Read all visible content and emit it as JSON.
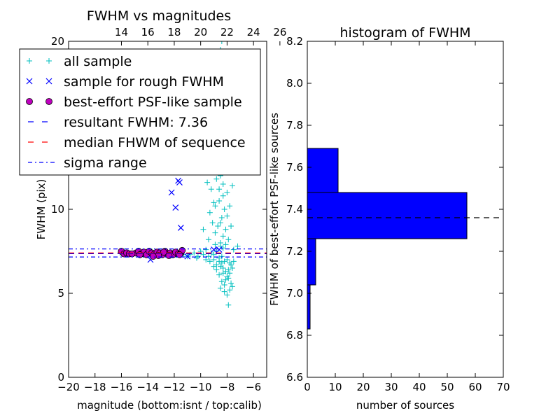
{
  "chart_data": [
    {
      "type": "scatter",
      "title": "FWHM vs magnitudes",
      "xlabel": "magnitude (bottom:isnt / top:calib)",
      "ylabel": "FWHM (pix)",
      "xlim": [
        -20,
        -5
      ],
      "ylim": [
        0,
        20
      ],
      "x_ticks": [
        -20,
        -18,
        -16,
        -14,
        -12,
        -10,
        -8,
        -6
      ],
      "x_tick_labels": [
        "−20",
        "−18",
        "−16",
        "−14",
        "−12",
        "−10",
        "−8",
        "−6"
      ],
      "y_ticks": [
        0,
        5,
        10,
        20
      ],
      "y_tick_labels": [
        "0",
        "5",
        "10",
        "20"
      ],
      "top_axis": {
        "offset": 30,
        "ticks": [
          14,
          16,
          18,
          20,
          22,
          24,
          26
        ],
        "tick_labels": [
          "14",
          "16",
          "18",
          "20",
          "22",
          "24",
          "26"
        ]
      },
      "grid": false,
      "legend_position": "upper-left",
      "legend": [
        {
          "label": "all sample",
          "marker": "plus",
          "color": "#00bfbf"
        },
        {
          "label": "sample for rough FWHM",
          "marker": "x",
          "color": "#0000ff"
        },
        {
          "label": "best-effort PSF-like sample",
          "marker": "circle",
          "color": "#bf00bf"
        },
        {
          "label": "resultant FWHM: 7.36",
          "marker": "dashed-line",
          "color": "#0000ff"
        },
        {
          "label": "median FHWM of sequence",
          "marker": "dashed-line",
          "color": "#ff0000"
        },
        {
          "label": "sigma range",
          "marker": "dashdot-line",
          "color": "#0000ff"
        }
      ],
      "series": [
        {
          "marker": "plus",
          "color": "#00bfbf",
          "points": [
            [
              -10.8,
              7.3
            ],
            [
              -10.5,
              7.4
            ],
            [
              -10.2,
              7.2
            ],
            [
              -10.0,
              7.5
            ],
            [
              -9.8,
              7.3
            ],
            [
              -9.6,
              7.6
            ],
            [
              -9.4,
              7.2
            ],
            [
              -9.2,
              7.4
            ],
            [
              -9.0,
              7.3
            ],
            [
              -8.8,
              7.5
            ],
            [
              -8.6,
              7.1
            ],
            [
              -8.4,
              7.2
            ],
            [
              -8.2,
              6.9
            ],
            [
              -8.0,
              7.0
            ],
            [
              -7.8,
              6.8
            ],
            [
              -7.5,
              7.6
            ],
            [
              -7.2,
              7.8
            ],
            [
              -7.9,
              4.3
            ],
            [
              -8.1,
              5.8
            ],
            [
              -8.3,
              6.2
            ],
            [
              -8.5,
              6.6
            ],
            [
              -7.9,
              6.4
            ],
            [
              -7.7,
              5.6
            ],
            [
              -7.6,
              5.4
            ],
            [
              -8.0,
              6.0
            ],
            [
              -8.2,
              5.5
            ],
            [
              -8.4,
              6.8
            ],
            [
              -7.8,
              6.2
            ],
            [
              -8.6,
              6.9
            ],
            [
              -8.8,
              6.7
            ],
            [
              -9.0,
              7.0
            ],
            [
              -9.3,
              6.9
            ],
            [
              -9.6,
              7.0
            ],
            [
              -10.3,
              7.1
            ],
            [
              -11.0,
              7.2
            ],
            [
              -11.3,
              7.3
            ],
            [
              -11.6,
              7.4
            ],
            [
              -11.9,
              7.3
            ],
            [
              -12.2,
              7.4
            ],
            [
              -12.5,
              7.3
            ],
            [
              -12.8,
              7.5
            ],
            [
              -13.1,
              7.4
            ],
            [
              -13.4,
              7.3
            ],
            [
              -13.7,
              7.5
            ],
            [
              -14.0,
              7.4
            ],
            [
              -14.3,
              7.3
            ],
            [
              -14.6,
              7.4
            ],
            [
              -14.9,
              7.4
            ],
            [
              -15.2,
              7.3
            ],
            [
              -15.5,
              7.4
            ],
            [
              -15.8,
              7.5
            ],
            [
              -16.1,
              7.4
            ],
            [
              -8.5,
              8.0
            ],
            [
              -8.3,
              8.4
            ],
            [
              -8.1,
              8.8
            ],
            [
              -8.7,
              9.0
            ],
            [
              -8.4,
              9.5
            ],
            [
              -8.2,
              10.0
            ],
            [
              -8.6,
              10.5
            ],
            [
              -8.0,
              11.0
            ],
            [
              -8.3,
              11.5
            ],
            [
              -8.5,
              12.0
            ],
            [
              -8.1,
              12.5
            ],
            [
              -8.7,
              13.0
            ],
            [
              -8.4,
              13.5
            ],
            [
              -8.2,
              14.0
            ],
            [
              -8.6,
              14.5
            ],
            [
              -8.3,
              15.0
            ],
            [
              -8.5,
              15.5
            ],
            [
              -8.1,
              16.0
            ],
            [
              -8.7,
              16.5
            ],
            [
              -8.4,
              17.0
            ],
            [
              -8.2,
              17.5
            ],
            [
              -8.6,
              18.0
            ],
            [
              -8.0,
              18.5
            ],
            [
              -8.3,
              19.0
            ],
            [
              -8.5,
              19.5
            ],
            [
              -8.4,
              20.0
            ],
            [
              -8.9,
              8.6
            ],
            [
              -9.1,
              9.2
            ],
            [
              -9.3,
              9.8
            ],
            [
              -9.0,
              10.4
            ],
            [
              -9.2,
              11.2
            ],
            [
              -8.8,
              11.8
            ],
            [
              -9.4,
              12.4
            ],
            [
              -9.1,
              13.2
            ],
            [
              -8.9,
              13.8
            ],
            [
              -9.3,
              14.6
            ],
            [
              -9.0,
              15.4
            ],
            [
              -8.8,
              16.2
            ],
            [
              -9.2,
              17.0
            ],
            [
              -8.9,
              17.8
            ],
            [
              -9.5,
              11.6
            ],
            [
              -9.7,
              12.8
            ],
            [
              -9.6,
              14.2
            ],
            [
              -9.9,
              13.0
            ],
            [
              -10.1,
              14.0
            ],
            [
              -10.4,
              13.4
            ],
            [
              -7.9,
              8.2
            ],
            [
              -7.7,
              9.0
            ],
            [
              -7.8,
              10.2
            ],
            [
              -7.6,
              11.4
            ],
            [
              -7.9,
              12.6
            ],
            [
              -7.7,
              14.8
            ],
            [
              -7.8,
              16.6
            ],
            [
              -8.0,
              9.6
            ],
            [
              -8.2,
              12.2
            ],
            [
              -8.4,
              15.8
            ],
            [
              -8.6,
              11.2
            ],
            [
              -8.8,
              14.2
            ],
            [
              -8.3,
              10.8
            ],
            [
              -8.1,
              13.6
            ],
            [
              -8.5,
              9.2
            ],
            [
              -8.7,
              12.4
            ],
            [
              -8.2,
              16.8
            ],
            [
              -8.4,
              18.4
            ],
            [
              -8.6,
              19.2
            ],
            [
              -8.0,
              14.4
            ],
            [
              -8.9,
              10.2
            ],
            [
              -9.1,
              16.4
            ],
            [
              -8.3,
              6.5
            ],
            [
              -8.1,
              6.3
            ],
            [
              -7.9,
              5.9
            ],
            [
              -8.4,
              5.7
            ],
            [
              -8.2,
              5.1
            ],
            [
              -7.7,
              6.7
            ],
            [
              -8.6,
              6.1
            ],
            [
              -8.8,
              6.4
            ],
            [
              -9.0,
              6.6
            ],
            [
              -8.5,
              5.3
            ],
            [
              -7.5,
              6.9
            ],
            [
              -7.6,
              6.5
            ],
            [
              -7.8,
              5.2
            ],
            [
              -8.0,
              4.9
            ],
            [
              -8.3,
              7.7
            ],
            [
              -8.1,
              7.9
            ],
            [
              -8.5,
              7.8
            ],
            [
              -8.9,
              7.9
            ],
            [
              -9.4,
              8.2
            ],
            [
              -9.8,
              8.8
            ]
          ]
        },
        {
          "marker": "x",
          "color": "#0000ff",
          "points": [
            [
              -12.2,
              11.0
            ],
            [
              -11.7,
              11.7
            ],
            [
              -11.6,
              11.6
            ],
            [
              -11.9,
              10.1
            ],
            [
              -11.5,
              8.9
            ],
            [
              -9.5,
              13.5
            ],
            [
              -10.2,
              12.2
            ],
            [
              -11.3,
              12.6
            ],
            [
              -13.8,
              7.0
            ],
            [
              -11.0,
              7.2
            ],
            [
              -8.6,
              7.6
            ],
            [
              -9.0,
              7.6
            ],
            [
              -12.0,
              7.3
            ]
          ]
        },
        {
          "marker": "circle",
          "color": "#bf00bf",
          "points": [
            [
              -16.0,
              7.5
            ],
            [
              -15.8,
              7.35
            ],
            [
              -15.6,
              7.4
            ],
            [
              -15.4,
              7.35
            ],
            [
              -14.9,
              7.4
            ],
            [
              -14.7,
              7.5
            ],
            [
              -14.5,
              7.35
            ],
            [
              -14.3,
              7.45
            ],
            [
              -14.1,
              7.3
            ],
            [
              -13.9,
              7.5
            ],
            [
              -13.7,
              7.4
            ],
            [
              -13.5,
              7.35
            ],
            [
              -13.3,
              7.45
            ],
            [
              -13.1,
              7.4
            ],
            [
              -12.9,
              7.3
            ],
            [
              -12.7,
              7.5
            ],
            [
              -12.5,
              7.35
            ],
            [
              -12.3,
              7.4
            ],
            [
              -12.1,
              7.3
            ],
            [
              -11.9,
              7.45
            ],
            [
              -11.7,
              7.35
            ],
            [
              -11.5,
              7.4
            ],
            [
              -11.4,
              7.55
            ],
            [
              -11.6,
              7.3
            ],
            [
              -12.4,
              7.25
            ],
            [
              -13.2,
              7.25
            ],
            [
              -13.6,
              7.2
            ],
            [
              -14.6,
              7.3
            ],
            [
              -15.2,
              7.35
            ],
            [
              -12.8,
              7.45
            ]
          ]
        }
      ],
      "reference_lines": [
        {
          "y": 7.36,
          "style": "dashed",
          "color": "#0000ff"
        },
        {
          "y": 7.4,
          "style": "dashed",
          "color": "#ff0000"
        },
        {
          "y": 7.16,
          "style": "dashdot",
          "color": "#0000ff"
        },
        {
          "y": 7.64,
          "style": "dashdot",
          "color": "#0000ff"
        }
      ]
    },
    {
      "type": "bar",
      "orientation": "horizontal",
      "title": "histogram of FWHM",
      "xlabel": "number of sources",
      "ylabel": "FWHM of best-effort PSF-like sources",
      "xlim": [
        0,
        70
      ],
      "ylim": [
        6.6,
        8.2
      ],
      "x_ticks": [
        0,
        10,
        20,
        30,
        40,
        50,
        60,
        70
      ],
      "x_tick_labels": [
        "0",
        "10",
        "20",
        "30",
        "40",
        "50",
        "60",
        "70"
      ],
      "y_ticks": [
        6.6,
        6.8,
        7.0,
        7.2,
        7.4,
        7.6,
        7.8,
        8.0,
        8.2
      ],
      "y_tick_labels": [
        "6.6",
        "6.8",
        "7.0",
        "7.2",
        "7.4",
        "7.6",
        "7.8",
        "8.0",
        "8.2"
      ],
      "grid": false,
      "color": "#0000ff",
      "bins": [
        {
          "y_low": 6.83,
          "y_high": 7.04,
          "count": 1
        },
        {
          "y_low": 7.04,
          "y_high": 7.26,
          "count": 3
        },
        {
          "y_low": 7.26,
          "y_high": 7.48,
          "count": 57
        },
        {
          "y_low": 7.48,
          "y_high": 7.69,
          "count": 11
        }
      ],
      "reference_line": {
        "y": 7.36,
        "style": "dashed",
        "color": "#000000"
      }
    }
  ]
}
